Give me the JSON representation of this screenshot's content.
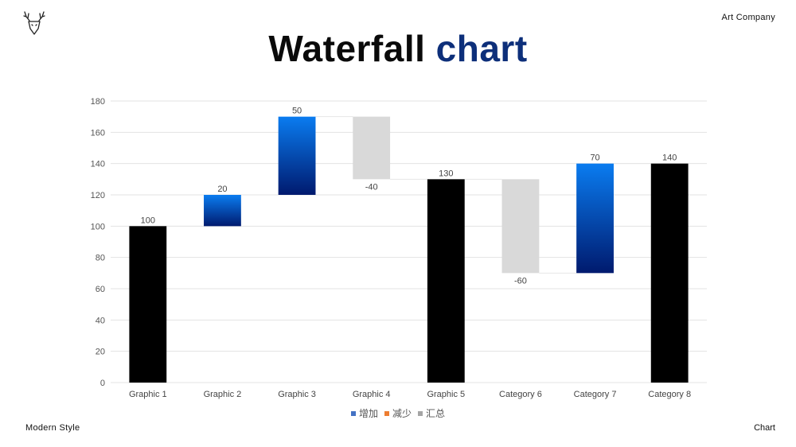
{
  "header": {
    "company": "Art Company"
  },
  "title": {
    "part1": "Waterfall",
    "part2": "chart"
  },
  "footer": {
    "left": "Modern Style",
    "right": "Chart"
  },
  "colors": {
    "increase_top": "#0a7cf0",
    "increase_bottom": "#001a6e",
    "decrease": "#d9d9d9",
    "total": "#000000",
    "legend_increase": "#4472c4",
    "legend_decrease": "#ed7d31",
    "legend_total": "#a5a5a5"
  },
  "chart_data": {
    "type": "bar",
    "subtype": "waterfall",
    "categories": [
      "Graphic 1",
      "Graphic 2",
      "Graphic 3",
      "Graphic 4",
      "Graphic 5",
      "Category 6",
      "Category 7",
      "Category 8"
    ],
    "values": [
      100,
      20,
      50,
      -40,
      130,
      -60,
      70,
      140
    ],
    "kinds": [
      "total",
      "increase",
      "increase",
      "decrease",
      "total",
      "decrease",
      "increase",
      "total"
    ],
    "data_labels": [
      "100",
      "20",
      "50",
      "-40",
      "130",
      "-60",
      "70",
      "140"
    ],
    "ylim": [
      0,
      180
    ],
    "yticks": [
      0,
      20,
      40,
      60,
      80,
      100,
      120,
      140,
      160,
      180
    ],
    "grid": true,
    "legend_position": "bottom",
    "legend": [
      {
        "label": "增加",
        "color": "#4472c4"
      },
      {
        "label": "减少",
        "color": "#ed7d31"
      },
      {
        "label": "汇总",
        "color": "#a5a5a5"
      }
    ]
  }
}
